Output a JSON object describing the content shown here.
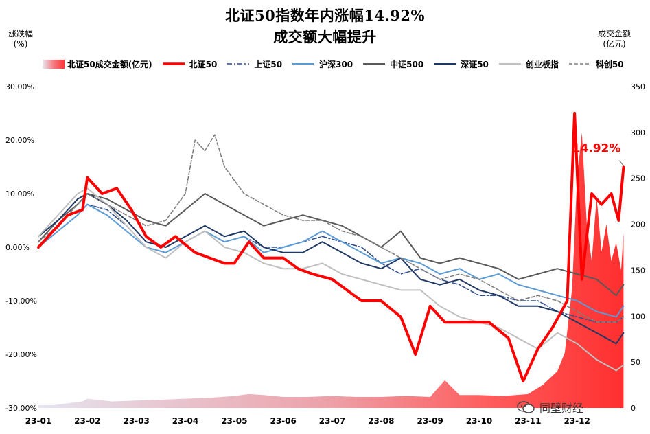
{
  "chart_data": {
    "type": "line",
    "title": "北证50指数年内涨幅14.92%",
    "subtitle": "成交额大幅提升",
    "left_axis_label": "涨跌幅\n(%)",
    "right_axis_label": "成交金额\n(亿元)",
    "left_axis": {
      "range": [
        -30,
        30
      ],
      "ticks": [
        "30.00%",
        "20.00%",
        "10.00%",
        "0.00%",
        "-10.00%",
        "-20.00%",
        "-30.00%"
      ]
    },
    "right_axis": {
      "range": [
        0,
        350
      ],
      "ticks": [
        "350",
        "300",
        "250",
        "200",
        "150",
        "100",
        "50",
        "0"
      ]
    },
    "x_ticks": [
      "23-01",
      "23-02",
      "23-03",
      "23-04",
      "23-05",
      "23-06",
      "23-07",
      "23-08",
      "23-09",
      "23-10",
      "23-11",
      "23-12"
    ],
    "x_positions": [
      0,
      1,
      2,
      3,
      4,
      5,
      6,
      7,
      8,
      9,
      10,
      11
    ],
    "x_range": [
      0,
      12
    ],
    "legend": [
      {
        "name": "北证50成交金额(亿元)",
        "kind": "area",
        "color": "#ff3b3b"
      },
      {
        "name": "北证50",
        "kind": "line",
        "color": "#ff0000",
        "width": 4,
        "dash": ""
      },
      {
        "name": "上证50",
        "kind": "line",
        "color": "#2f4f8f",
        "width": 1.6,
        "dash": "7,3,2,3"
      },
      {
        "name": "沪深300",
        "kind": "line",
        "color": "#5b9bd5",
        "width": 2,
        "dash": ""
      },
      {
        "name": "中证500",
        "kind": "line",
        "color": "#595959",
        "width": 2,
        "dash": ""
      },
      {
        "name": "深证50",
        "kind": "line",
        "color": "#1f3864",
        "width": 2,
        "dash": ""
      },
      {
        "name": "创业板指",
        "kind": "line",
        "color": "#bfbfbf",
        "width": 2,
        "dash": ""
      },
      {
        "name": "科创50",
        "kind": "line",
        "color": "#7f7f7f",
        "width": 1.6,
        "dash": "5,3"
      }
    ],
    "annotation": {
      "text": "14.92%",
      "color": "#ff0000"
    },
    "series": [
      {
        "name": "北证50",
        "x": [
          0,
          0.3,
          0.6,
          0.9,
          1.0,
          1.3,
          1.6,
          1.9,
          2.2,
          2.5,
          2.8,
          3.2,
          3.5,
          3.8,
          4.0,
          4.3,
          4.6,
          5.0,
          5.3,
          5.6,
          6.0,
          6.3,
          6.6,
          7.0,
          7.4,
          7.7,
          8.0,
          8.3,
          8.6,
          8.9,
          9.2,
          9.6,
          9.9,
          10.2,
          10.5,
          10.8,
          10.95,
          11.1,
          11.3,
          11.5,
          11.7,
          11.85,
          11.95
        ],
        "y": [
          0,
          3,
          6,
          7,
          13,
          10,
          11,
          7,
          2,
          0,
          2,
          -1,
          -2,
          -3,
          -3,
          1,
          -2,
          -2,
          -4,
          -5,
          -6,
          -8,
          -10,
          -10,
          -13,
          -20,
          -11,
          -14,
          -14,
          -14,
          -14,
          -17,
          -25,
          -19,
          -15,
          -10,
          25,
          -6,
          10,
          8,
          10,
          5,
          14.92
        ]
      },
      {
        "name": "上证50",
        "x": [
          0,
          0.4,
          0.8,
          1.0,
          1.4,
          1.8,
          2.2,
          2.6,
          3.0,
          3.4,
          3.8,
          4.2,
          4.6,
          5.0,
          5.4,
          5.8,
          6.2,
          6.6,
          7.0,
          7.4,
          7.8,
          8.2,
          8.6,
          9.0,
          9.4,
          9.8,
          10.2,
          10.6,
          11.0,
          11.4,
          11.8,
          11.95
        ],
        "y": [
          0,
          3,
          6,
          8,
          7,
          4,
          0,
          -1,
          1,
          3,
          1,
          2,
          0,
          0,
          1,
          2,
          1,
          0,
          -3,
          -5,
          -4,
          -6,
          -7,
          -9,
          -9,
          -10,
          -10,
          -12,
          -13,
          -14,
          -14,
          -13
        ]
      },
      {
        "name": "沪深300",
        "x": [
          0,
          0.4,
          0.8,
          1.0,
          1.4,
          1.8,
          2.2,
          2.6,
          3.0,
          3.4,
          3.8,
          4.2,
          4.6,
          5.0,
          5.4,
          5.8,
          6.2,
          6.6,
          7.0,
          7.4,
          7.8,
          8.2,
          8.6,
          9.0,
          9.4,
          9.8,
          10.2,
          10.6,
          11.0,
          11.4,
          11.8,
          11.95
        ],
        "y": [
          0,
          3,
          6,
          8,
          6,
          3,
          0,
          -1,
          1,
          3,
          1,
          2,
          -1,
          0,
          1,
          3,
          1,
          -1,
          -3,
          -2,
          -3,
          -5,
          -4,
          -6,
          -5,
          -7,
          -8,
          -9,
          -10,
          -12,
          -13,
          -11
        ]
      },
      {
        "name": "中证500",
        "x": [
          0,
          0.4,
          0.8,
          1.0,
          1.4,
          1.8,
          2.2,
          2.6,
          3.0,
          3.4,
          3.8,
          4.2,
          4.6,
          5.0,
          5.4,
          5.8,
          6.2,
          6.6,
          7.0,
          7.4,
          7.8,
          8.2,
          8.6,
          9.0,
          9.4,
          9.8,
          10.2,
          10.6,
          11.0,
          11.4,
          11.8,
          11.95
        ],
        "y": [
          1,
          5,
          8,
          10,
          9,
          7,
          5,
          4,
          7,
          10,
          8,
          6,
          4,
          5,
          6,
          5,
          4,
          2,
          0,
          3,
          -2,
          -3,
          -2,
          -3,
          -4,
          -6,
          -5,
          -4,
          -5,
          -6,
          -9,
          -7
        ]
      },
      {
        "name": "深证50",
        "x": [
          0,
          0.4,
          0.8,
          1.0,
          1.4,
          1.8,
          2.2,
          2.6,
          3.0,
          3.4,
          3.8,
          4.2,
          4.6,
          5.0,
          5.4,
          5.8,
          6.2,
          6.6,
          7.0,
          7.4,
          7.8,
          8.2,
          8.6,
          9.0,
          9.4,
          9.8,
          10.2,
          10.6,
          11.0,
          11.4,
          11.8,
          11.95
        ],
        "y": [
          2,
          5,
          9,
          10,
          8,
          5,
          1,
          0,
          2,
          4,
          2,
          3,
          0,
          -1,
          -1,
          1,
          -1,
          -3,
          -4,
          -2,
          -6,
          -7,
          -6,
          -8,
          -9,
          -11,
          -11,
          -12,
          -14,
          -16,
          -18,
          -16
        ]
      },
      {
        "name": "创业板指",
        "x": [
          0,
          0.4,
          0.8,
          1.0,
          1.4,
          1.8,
          2.2,
          2.6,
          3.0,
          3.4,
          3.8,
          4.2,
          4.6,
          5.0,
          5.4,
          5.8,
          6.2,
          6.6,
          7.0,
          7.4,
          7.8,
          8.2,
          8.6,
          9.0,
          9.4,
          9.8,
          10.2,
          10.6,
          11.0,
          11.4,
          11.8,
          11.95
        ],
        "y": [
          2,
          6,
          10,
          11,
          8,
          4,
          0,
          -2,
          1,
          3,
          0,
          -1,
          -3,
          -4,
          -4,
          -3,
          -5,
          -6,
          -7,
          -8,
          -8,
          -11,
          -13,
          -14,
          -15,
          -17,
          -19,
          -16,
          -18,
          -21,
          -23,
          -22
        ]
      },
      {
        "name": "科创50",
        "x": [
          0,
          0.4,
          0.8,
          1.0,
          1.4,
          1.8,
          2.2,
          2.6,
          3.0,
          3.2,
          3.4,
          3.6,
          3.8,
          4.2,
          4.6,
          5.0,
          5.4,
          5.8,
          6.2,
          6.6,
          7.0,
          7.4,
          7.8,
          8.2,
          8.6,
          9.0,
          9.4,
          9.8,
          10.2,
          10.6,
          11.0,
          11.4,
          11.8,
          11.95
        ],
        "y": [
          1,
          4,
          8,
          10,
          8,
          6,
          4,
          5,
          10,
          20,
          18,
          21,
          15,
          10,
          8,
          6,
          5,
          5,
          3,
          2,
          0,
          -2,
          -4,
          -6,
          -5,
          -6,
          -8,
          -10,
          -9,
          -10,
          -12,
          -14,
          -14,
          -13
        ]
      }
    ],
    "turnover": {
      "name": "北证50成交金额(亿元)",
      "x": [
        0,
        0.3,
        0.6,
        0.9,
        1.0,
        1.2,
        1.5,
        2.0,
        2.5,
        3.0,
        3.5,
        4.0,
        4.3,
        4.6,
        5.0,
        5.5,
        6.0,
        6.5,
        7.0,
        7.5,
        8.0,
        8.3,
        8.6,
        9.0,
        9.5,
        10.0,
        10.3,
        10.6,
        10.75,
        10.9,
        11.0,
        11.1,
        11.2,
        11.3,
        11.4,
        11.5,
        11.6,
        11.7,
        11.8,
        11.9,
        11.95
      ],
      "y": [
        3,
        3,
        5,
        7,
        10,
        9,
        7,
        8,
        9,
        10,
        11,
        13,
        15,
        14,
        12,
        12,
        13,
        12,
        12,
        13,
        12,
        30,
        14,
        14,
        13,
        15,
        25,
        40,
        60,
        130,
        250,
        300,
        200,
        160,
        230,
        170,
        200,
        160,
        180,
        150,
        190
      ]
    }
  },
  "watermark": {
    "text": "同壁财经",
    "icon": "wechat-icon"
  }
}
